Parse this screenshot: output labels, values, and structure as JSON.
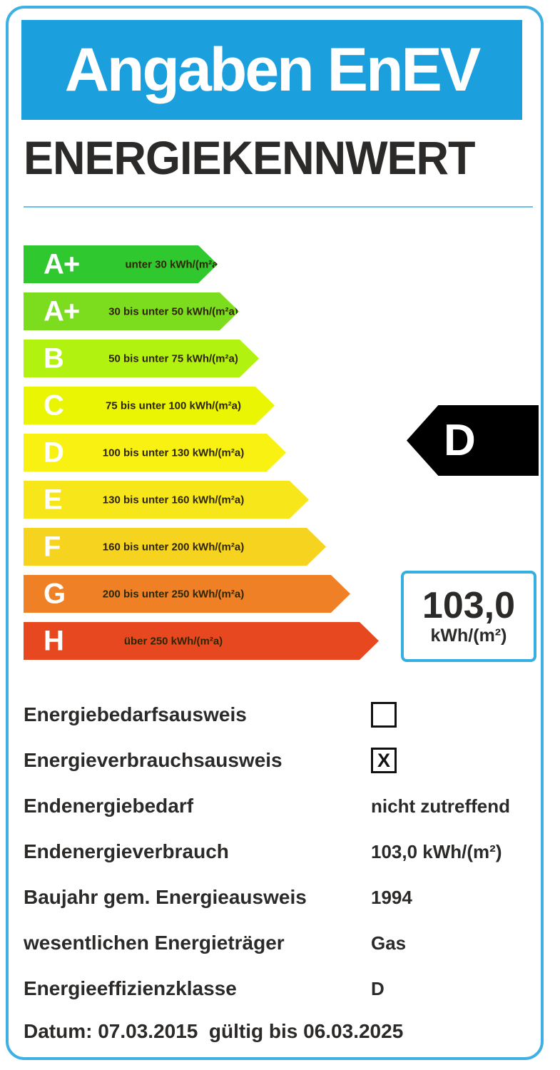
{
  "header": {
    "title": "Angaben EnEV",
    "subtitle": "ENERGIEKENNWERT",
    "header_bg": "#1b9fdd",
    "frame_color": "#3fb0e3"
  },
  "scale": [
    {
      "letter": "A+",
      "range": "unter 30 kWh/(m²a)",
      "color": "#2fc82f"
    },
    {
      "letter": "A+",
      "range": "30 bis unter 50 kWh/(m²a)",
      "color": "#7cdd1e"
    },
    {
      "letter": "B",
      "range": "50 bis unter 75 kWh/(m²a)",
      "color": "#b2f211"
    },
    {
      "letter": "C",
      "range": "75 bis unter 100 kWh/(m²a)",
      "color": "#e9f502"
    },
    {
      "letter": "D",
      "range": "100 bis unter 130 kWh/(m²a)",
      "color": "#f9f112"
    },
    {
      "letter": "E",
      "range": "130 bis unter 160 kWh/(m²a)",
      "color": "#f7e71a"
    },
    {
      "letter": "F",
      "range": "160 bis unter 200 kWh/(m²a)",
      "color": "#f6d31f"
    },
    {
      "letter": "G",
      "range": "200 bis unter 250 kWh/(m²a)",
      "color": "#f08026"
    },
    {
      "letter": "H",
      "range": "über 250 kWh/(m²a)",
      "color": "#e8481f"
    }
  ],
  "rating": {
    "class_letter": "D",
    "value": "103,0",
    "unit": "kWh/(m²)"
  },
  "details": [
    {
      "label": "Energiebedarfsausweis",
      "type": "checkbox",
      "checked": false,
      "mark": ""
    },
    {
      "label": "Energieverbrauchsausweis",
      "type": "checkbox",
      "checked": true,
      "mark": "X"
    },
    {
      "label": "Endenergiebedarf",
      "type": "value",
      "value": "nicht zutreffend"
    },
    {
      "label": "Endenergieverbrauch",
      "type": "value",
      "value": "103,0 kWh/(m²)"
    },
    {
      "label": "Baujahr gem. Energieausweis",
      "type": "value",
      "value": "1994"
    },
    {
      "label": "wesentlichen Energieträger",
      "type": "value",
      "value": "Gas"
    },
    {
      "label": "Energieeffizienzklasse",
      "type": "value",
      "value": "D"
    }
  ],
  "footer": {
    "date_line": "Datum: 07.03.2015  gültig bis 06.03.2025"
  }
}
